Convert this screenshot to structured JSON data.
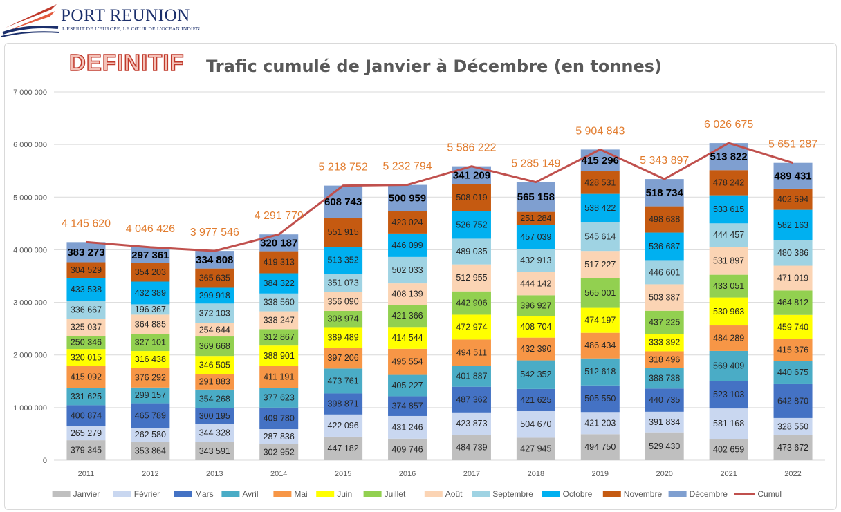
{
  "logo": {
    "brand": "PORT REUNION",
    "tagline": "L'ESPRIT DE L'EUROPE, LE CŒUR DE L'OCEAN INDIEN"
  },
  "stamp": "DEFINITIF",
  "chart_data": {
    "type": "bar",
    "stacked": true,
    "title": "Trafic cumulé de Janvier à Décembre (en tonnes)",
    "categories": [
      "2011",
      "2012",
      "2013",
      "2014",
      "2015",
      "2016",
      "2017",
      "2018",
      "2019",
      "2020",
      "2021",
      "2022"
    ],
    "ylim": [
      0,
      7000000
    ],
    "yticks": [
      "0",
      "1 000 000",
      "2 000 000",
      "3 000 000",
      "4 000 000",
      "5 000 000",
      "6 000 000",
      "7 000 000"
    ],
    "grid": true,
    "legend_position": "bottom",
    "series": [
      {
        "name": "Janvier",
        "color": "#bfbfbf",
        "values": [
          379345,
          353864,
          343591,
          302952,
          447182,
          409746,
          484739,
          427945,
          494750,
          529430,
          402659,
          473672
        ],
        "labels": [
          "379 345",
          "353 864",
          "343 591",
          "302 952",
          "447 182",
          "409 746",
          "484 739",
          "427 945",
          "494 750",
          "529 430",
          "402 659",
          "473 672"
        ]
      },
      {
        "name": "Février",
        "color": "#c9d7f0",
        "values": [
          265279,
          262580,
          344328,
          287836,
          422096,
          431246,
          423873,
          504670,
          421203,
          391834,
          581168,
          328550
        ],
        "labels": [
          "265 279",
          "262 580",
          "344 328",
          "287 836",
          "422 096",
          "431 246",
          "423 873",
          "504 670",
          "421 203",
          "391 834",
          "581 168",
          "328 550"
        ]
      },
      {
        "name": "Mars",
        "color": "#4472c4",
        "values": [
          400874,
          465789,
          300195,
          409780,
          398871,
          374857,
          487362,
          421625,
          505550,
          440735,
          523103,
          642870
        ],
        "labels": [
          "400 874",
          "465 789",
          "300 195",
          "409 780",
          "398 871",
          "374 857",
          "487 362",
          "421 625",
          "505 550",
          "440 735",
          "523 103",
          "642 870"
        ]
      },
      {
        "name": "Avril",
        "color": "#4aacc6",
        "values": [
          331625,
          299157,
          354268,
          377623,
          473761,
          405227,
          401887,
          542352,
          512618,
          388738,
          569409,
          440675
        ],
        "labels": [
          "331 625",
          "299 157",
          "354 268",
          "377 623",
          "473 761",
          "405 227",
          "401 887",
          "542 352",
          "512 618",
          "388 738",
          "569 409",
          "440 675"
        ]
      },
      {
        "name": "Mai",
        "color": "#f79646",
        "values": [
          415092,
          376292,
          291883,
          411191,
          397206,
          495554,
          494511,
          432390,
          486434,
          318496,
          484289,
          415376
        ],
        "labels": [
          "415 092",
          "376 292",
          "291 883",
          "411 191",
          "397 206",
          "495 554",
          "494 511",
          "432 390",
          "486 434",
          "318 496",
          "484 289",
          "415 376"
        ]
      },
      {
        "name": "Juin",
        "color": "#ffff00",
        "values": [
          320015,
          316438,
          346505,
          388901,
          389489,
          414544,
          472974,
          408704,
          474197,
          333392,
          530963,
          459740
        ],
        "labels": [
          "320 015",
          "316 438",
          "346 505",
          "388 901",
          "389 489",
          "414 544",
          "472 974",
          "408 704",
          "474 197",
          "333 392",
          "530 963",
          "459 740"
        ]
      },
      {
        "name": "Juillet",
        "color": "#92d050",
        "values": [
          250346,
          327101,
          369668,
          312867,
          308974,
          421366,
          442906,
          396927,
          565001,
          437225,
          433051,
          464812
        ],
        "labels": [
          "250 346",
          "327 101",
          "369 668",
          "312 867",
          "308 974",
          "421 366",
          "442 906",
          "396 927",
          "565 001",
          "437 225",
          "433 051",
          "464 812"
        ]
      },
      {
        "name": "Août",
        "color": "#fbd4b4",
        "values": [
          325037,
          364885,
          254644,
          338247,
          356090,
          408139,
          512955,
          444142,
          517227,
          503387,
          531897,
          471019
        ],
        "labels": [
          "325 037",
          "364 885",
          "254 644",
          "338 247",
          "356 090",
          "408 139",
          "512 955",
          "444 142",
          "517 227",
          "503 387",
          "531 897",
          "471 019"
        ]
      },
      {
        "name": "Septembre",
        "color": "#9fd3e3",
        "values": [
          336667,
          196367,
          372103,
          338560,
          351073,
          502033,
          489035,
          432913,
          545614,
          446601,
          444457,
          480386
        ],
        "labels": [
          "336 667",
          "196 367",
          "372 103",
          "338 560",
          "351 073",
          "502 033",
          "489 035",
          "432 913",
          "545 614",
          "446 601",
          "444 457",
          "480 386"
        ]
      },
      {
        "name": "Octobre",
        "color": "#00b0f0",
        "values": [
          433538,
          432389,
          299918,
          384322,
          513352,
          446099,
          526752,
          457039,
          538422,
          536687,
          533615,
          582163
        ],
        "labels": [
          "433 538",
          "432 389",
          "299 918",
          "384 322",
          "513 352",
          "446 099",
          "526 752",
          "457 039",
          "538 422",
          "536 687",
          "533 615",
          "582 163"
        ]
      },
      {
        "name": "Novembre",
        "color": "#c55a11",
        "values": [
          304529,
          354203,
          365635,
          419313,
          551915,
          423024,
          508019,
          251284,
          428531,
          498638,
          478242,
          402594
        ],
        "labels": [
          "304 529",
          "354 203",
          "365 635",
          "419 313",
          "551 915",
          "423 024",
          "508 019",
          "251 284",
          "428 531",
          "498 638",
          "478 242",
          "402 594"
        ]
      },
      {
        "name": "Décembre",
        "color": "#7f9fd0",
        "values": [
          383273,
          297361,
          334808,
          320187,
          608743,
          500959,
          341209,
          565158,
          415296,
          518734,
          513822,
          489431
        ],
        "labels": [
          "383 273",
          "297 361",
          "334 808",
          "320 187",
          "608 743",
          "500 959",
          "341 209",
          "565 158",
          "415 296",
          "518 734",
          "513 822",
          "489 431"
        ]
      },
      {
        "name": "Cumul",
        "type": "line",
        "color": "#c0504d",
        "values": [
          4145620,
          4046426,
          3977546,
          4291779,
          5218752,
          5232794,
          5586222,
          5285149,
          5904843,
          5343897,
          6026675,
          5651287
        ],
        "labels": [
          "4 145 620",
          "4 046 426",
          "3 977 546",
          "4 291 779",
          "5 218 752",
          "5 232 794",
          "5 586 222",
          "5 285 149",
          "5 904 843",
          "5 343 897",
          "6 026 675",
          "5 651 287"
        ]
      }
    ]
  }
}
